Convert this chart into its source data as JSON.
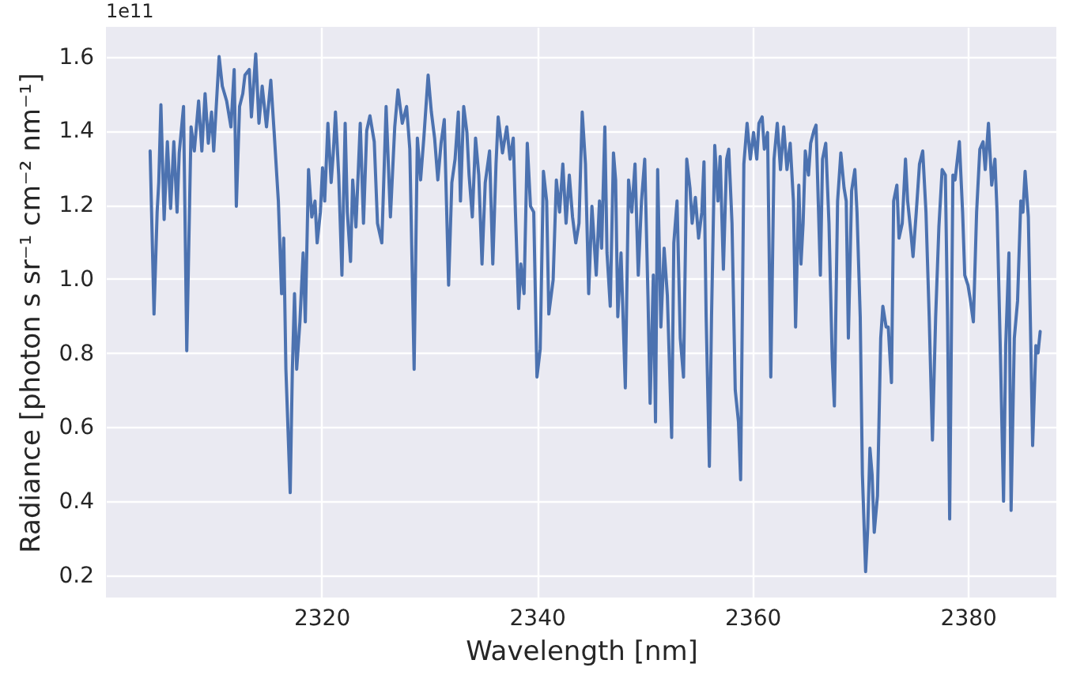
{
  "chart_data": {
    "type": "line",
    "xlabel": "Wavelength [nm]",
    "ylabel": "Radiance [photon s sr⁻¹ cm⁻² nm⁻¹]",
    "annotations": [
      "1e11"
    ],
    "xlim": [
      2300,
      2388.2
    ],
    "xticks": [
      2320,
      2340,
      2360,
      2380
    ],
    "ylim": [
      0.14,
      1.68
    ],
    "yticks": [
      0.2,
      0.4,
      0.6,
      0.8,
      {
        "value": 1,
        "label": "1.0"
      },
      1.2,
      1.4,
      1.6
    ],
    "grid": true,
    "marker": "none",
    "line_style": "solid",
    "series": [
      {
        "color": "#4c72b0",
        "x": [
          2304.1,
          2304.46,
          2304.75,
          2304.9,
          2305.1,
          2305.4,
          2305.7,
          2306.0,
          2306.3,
          2306.6,
          2306.8,
          2307.2,
          2307.5,
          2307.9,
          2308.2,
          2308.6,
          2308.9,
          2309.2,
          2309.5,
          2309.8,
          2310.0,
          2310.5,
          2310.8,
          2311.2,
          2311.6,
          2311.9,
          2312.1,
          2312.4,
          2312.7,
          2312.9,
          2313.3,
          2313.5,
          2313.9,
          2314.2,
          2314.5,
          2314.9,
          2315.3,
          2315.6,
          2316.0,
          2316.3,
          2316.5,
          2316.7,
          2317.1,
          2317.3,
          2317.5,
          2317.7,
          2318.0,
          2318.3,
          2318.5,
          2318.8,
          2319.1,
          2319.4,
          2319.6,
          2319.9,
          2320.1,
          2320.3,
          2320.6,
          2320.9,
          2321.1,
          2321.3,
          2321.6,
          2321.9,
          2322.2,
          2322.4,
          2322.7,
          2322.9,
          2323.2,
          2323.6,
          2323.9,
          2324.2,
          2324.5,
          2324.9,
          2325.2,
          2325.6,
          2326.0,
          2326.4,
          2326.8,
          2327.1,
          2327.5,
          2327.9,
          2328.2,
          2328.6,
          2328.9,
          2329.2,
          2329.5,
          2329.9,
          2330.2,
          2330.5,
          2330.8,
          2331.1,
          2331.4,
          2331.8,
          2332.1,
          2332.4,
          2332.7,
          2332.9,
          2333.2,
          2333.5,
          2333.7,
          2334.0,
          2334.3,
          2334.6,
          2334.9,
          2335.2,
          2335.6,
          2335.9,
          2336.2,
          2336.4,
          2336.8,
          2337.2,
          2337.5,
          2337.8,
          2338.0,
          2338.3,
          2338.5,
          2338.8,
          2339.1,
          2339.4,
          2339.7,
          2340.0,
          2340.3,
          2340.6,
          2340.9,
          2341.1,
          2341.5,
          2341.8,
          2342.1,
          2342.4,
          2342.7,
          2343.0,
          2343.3,
          2343.6,
          2343.9,
          2344.2,
          2344.5,
          2344.8,
          2345.1,
          2345.5,
          2345.8,
          2346.0,
          2346.3,
          2346.5,
          2346.8,
          2347.1,
          2347.3,
          2347.5,
          2347.8,
          2348.2,
          2348.5,
          2348.8,
          2349.1,
          2349.4,
          2349.7,
          2350.0,
          2350.3,
          2350.5,
          2350.8,
          2351.0,
          2351.2,
          2351.5,
          2351.8,
          2352.1,
          2352.5,
          2352.7,
          2353.0,
          2353.3,
          2353.6,
          2353.9,
          2354.2,
          2354.4,
          2354.7,
          2355.0,
          2355.3,
          2355.5,
          2355.7,
          2356.0,
          2356.2,
          2356.5,
          2356.8,
          2357.0,
          2357.3,
          2357.6,
          2357.8,
          2358.1,
          2358.4,
          2358.7,
          2358.9,
          2359.2,
          2359.5,
          2359.8,
          2360.1,
          2360.4,
          2360.6,
          2360.9,
          2361.1,
          2361.4,
          2361.7,
          2362.0,
          2362.3,
          2362.6,
          2362.9,
          2363.2,
          2363.5,
          2363.8,
          2364.0,
          2364.3,
          2364.5,
          2364.7,
          2364.9,
          2365.2,
          2365.4,
          2365.7,
          2365.9,
          2366.3,
          2366.5,
          2366.8,
          2367.1,
          2367.4,
          2367.6,
          2367.9,
          2368.2,
          2368.5,
          2368.7,
          2368.9,
          2369.2,
          2369.5,
          2369.7,
          2370.0,
          2370.2,
          2370.5,
          2370.7,
          2370.9,
          2371.1,
          2371.3,
          2371.6,
          2371.9,
          2372.1,
          2372.4,
          2372.6,
          2372.9,
          2373.1,
          2373.4,
          2373.6,
          2373.9,
          2374.2,
          2374.4,
          2374.7,
          2374.9,
          2375.2,
          2375.5,
          2375.8,
          2376.1,
          2376.4,
          2376.7,
          2377.0,
          2377.3,
          2377.6,
          2377.9,
          2378.1,
          2378.3,
          2378.6,
          2378.8,
          2379.2,
          2379.5,
          2379.7,
          2380.0,
          2380.2,
          2380.5,
          2380.8,
          2381.1,
          2381.4,
          2381.6,
          2381.9,
          2382.2,
          2382.5,
          2382.7,
          2383.0,
          2383.3,
          2383.5,
          2383.8,
          2384.0,
          2384.3,
          2384.6,
          2384.9,
          2385.1,
          2385.3,
          2385.6,
          2385.8,
          2386.0,
          2386.3,
          2386.5,
          2386.7
        ],
        "values": [
          1.345,
          0.905,
          1.18,
          1.26,
          1.47,
          1.16,
          1.37,
          1.19,
          1.37,
          1.18,
          1.34,
          1.465,
          0.806,
          1.41,
          1.345,
          1.48,
          1.345,
          1.5,
          1.366,
          1.45,
          1.345,
          1.6,
          1.52,
          1.48,
          1.41,
          1.565,
          1.196,
          1.465,
          1.5,
          1.55,
          1.565,
          1.437,
          1.607,
          1.42,
          1.52,
          1.41,
          1.536,
          1.4,
          1.21,
          0.96,
          1.11,
          0.756,
          0.423,
          0.756,
          0.96,
          0.756,
          0.884,
          1.07,
          0.884,
          1.295,
          1.167,
          1.21,
          1.097,
          1.18,
          1.3,
          1.21,
          1.42,
          1.26,
          1.34,
          1.45,
          1.28,
          1.01,
          1.42,
          1.18,
          1.047,
          1.267,
          1.14,
          1.42,
          1.15,
          1.4,
          1.44,
          1.37,
          1.15,
          1.097,
          1.465,
          1.167,
          1.41,
          1.51,
          1.42,
          1.465,
          1.35,
          0.756,
          1.38,
          1.267,
          1.38,
          1.55,
          1.45,
          1.38,
          1.267,
          1.366,
          1.43,
          0.983,
          1.26,
          1.323,
          1.45,
          1.21,
          1.465,
          1.395,
          1.28,
          1.167,
          1.38,
          1.28,
          1.04,
          1.26,
          1.345,
          1.04,
          1.31,
          1.437,
          1.34,
          1.41,
          1.323,
          1.38,
          1.18,
          0.92,
          1.04,
          0.96,
          1.366,
          1.196,
          1.18,
          0.735,
          0.81,
          1.29,
          1.21,
          0.905,
          0.997,
          1.267,
          1.18,
          1.31,
          1.15,
          1.28,
          1.167,
          1.097,
          1.15,
          1.45,
          1.31,
          0.96,
          1.196,
          1.01,
          1.21,
          1.083,
          1.41,
          1.07,
          0.926,
          1.34,
          1.267,
          0.898,
          1.07,
          0.706,
          1.267,
          1.18,
          1.31,
          1.01,
          1.21,
          1.323,
          0.955,
          0.664,
          1.01,
          0.614,
          1.295,
          0.87,
          1.083,
          0.955,
          0.572,
          1.097,
          1.21,
          0.84,
          0.735,
          1.323,
          1.245,
          1.15,
          1.22,
          1.11,
          1.18,
          1.316,
          0.898,
          0.494,
          0.898,
          1.36,
          1.21,
          1.33,
          1.026,
          1.323,
          1.35,
          1.15,
          0.7,
          0.614,
          0.458,
          1.31,
          1.42,
          1.323,
          1.395,
          1.323,
          1.42,
          1.437,
          1.35,
          1.395,
          0.735,
          1.323,
          1.42,
          1.295,
          1.41,
          1.295,
          1.366,
          1.21,
          0.87,
          1.253,
          1.04,
          1.15,
          1.345,
          1.28,
          1.366,
          1.4,
          1.415,
          1.01,
          1.323,
          1.366,
          1.15,
          0.785,
          0.657,
          1.21,
          1.34,
          1.245,
          1.21,
          0.84,
          1.238,
          1.295,
          1.18,
          0.898,
          0.472,
          0.21,
          0.33,
          0.543,
          0.472,
          0.316,
          0.415,
          0.84,
          0.926,
          0.87,
          0.87,
          0.72,
          1.21,
          1.253,
          1.11,
          1.15,
          1.323,
          1.21,
          1.125,
          1.06,
          1.18,
          1.31,
          1.345,
          1.18,
          0.898,
          0.565,
          0.898,
          1.14,
          1.295,
          1.28,
          0.898,
          0.352,
          1.28,
          1.267,
          1.37,
          1.18,
          1.01,
          0.983,
          0.947,
          0.884,
          1.18,
          1.35,
          1.37,
          1.295,
          1.42,
          1.253,
          1.323,
          1.18,
          0.81,
          0.4,
          0.82,
          1.07,
          0.375,
          0.84,
          0.94,
          1.21,
          1.18,
          1.29,
          1.167,
          0.87,
          0.55,
          0.82,
          0.8,
          0.858
        ]
      }
    ]
  }
}
